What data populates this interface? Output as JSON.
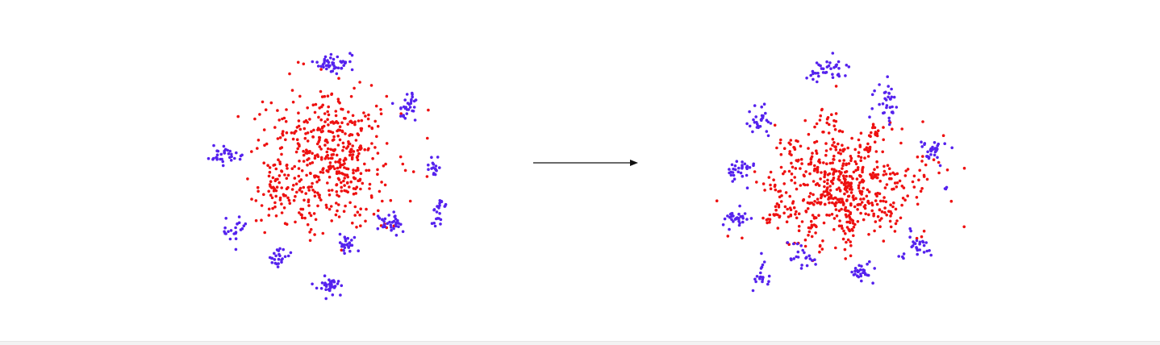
{
  "colors": {
    "id_class": "#ee1111",
    "ood_class": "#5522ee",
    "arrow": "#111111",
    "background": "#ffffff"
  },
  "diagram": {
    "before": {
      "id_cluster": "central",
      "ood_cluster_count": 10
    },
    "transition": "arrow-right",
    "after": {
      "id_cluster": "radiating-arms",
      "ood_cluster_count": 12
    }
  }
}
